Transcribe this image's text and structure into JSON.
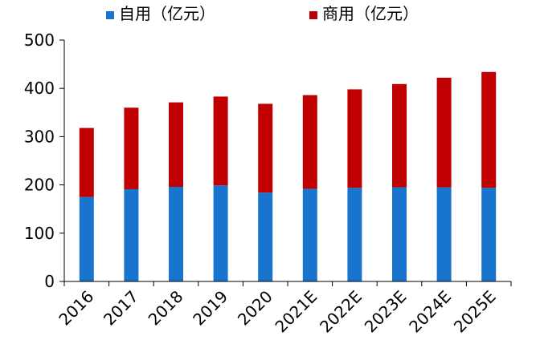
{
  "chart_data": {
    "type": "bar",
    "stacked": true,
    "categories": [
      "2016",
      "2017",
      "2018",
      "2019",
      "2020",
      "2021E",
      "2022E",
      "2023E",
      "2024E",
      "2025E"
    ],
    "series": [
      {
        "name": "自用（亿元）",
        "color": "#1874CD",
        "values": [
          175,
          191,
          196,
          199,
          184,
          192,
          194,
          195,
          195,
          194
        ]
      },
      {
        "name": "商用（亿元）",
        "color": "#C00000",
        "values": [
          143,
          169,
          175,
          184,
          184,
          194,
          204,
          214,
          227,
          240
        ]
      }
    ],
    "ylim": [
      0,
      500
    ],
    "yticks": [
      0,
      100,
      200,
      300,
      400,
      500
    ],
    "grid": false,
    "legend": "top"
  }
}
